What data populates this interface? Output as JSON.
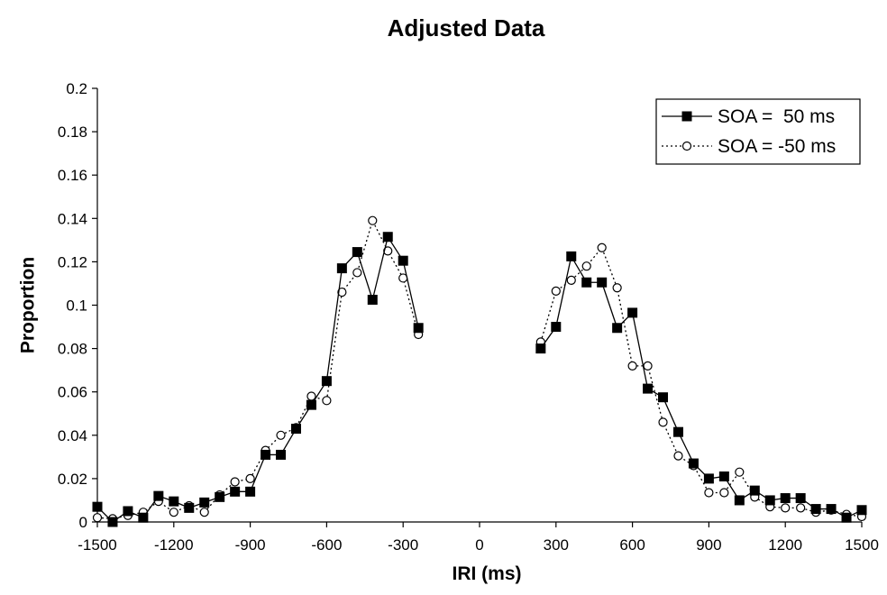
{
  "chart_data": {
    "type": "line",
    "title": "Adjusted Data",
    "xlabel": "IRI (ms)",
    "ylabel": "Proportion",
    "xlim": [
      -1500,
      1500
    ],
    "ylim": [
      0,
      0.2
    ],
    "x_ticks": [
      "-1500",
      "-1200",
      "-900",
      "-600",
      "-300",
      "0",
      "300",
      "600",
      "900",
      "1200",
      "1500"
    ],
    "y_ticks": [
      "0",
      "0.02",
      "0.04",
      "0.06",
      "0.08",
      "0.1",
      "0.12",
      "0.14",
      "0.16",
      "0.18",
      "0.2"
    ],
    "grid": false,
    "legend_position": "top-right",
    "series": [
      {
        "name": "SOA =  50 ms",
        "line_style": "solid",
        "marker": "filled-square",
        "color": "#000000",
        "segments": [
          {
            "x": [
              -1500,
              -1440,
              -1380,
              -1320,
              -1260,
              -1200,
              -1140,
              -1080,
              -1020,
              -960,
              -900,
              -840,
              -780,
              -720,
              -660,
              -600,
              -540,
              -480,
              -420,
              -360,
              -300,
              -240
            ],
            "y": [
              0.007,
              0.0,
              0.005,
              0.002,
              0.012,
              0.0095,
              0.0065,
              0.009,
              0.0115,
              0.014,
              0.014,
              0.031,
              0.031,
              0.043,
              0.054,
              0.065,
              0.117,
              0.1245,
              0.1025,
              0.1315,
              0.1205,
              0.0895
            ]
          },
          {
            "x": [
              240,
              300,
              360,
              420,
              480,
              540,
              600,
              660,
              720,
              780,
              840,
              900,
              960,
              1020,
              1080,
              1140,
              1200,
              1260,
              1320,
              1380,
              1440,
              1500
            ],
            "y": [
              0.08,
              0.09,
              0.1225,
              0.1105,
              0.1105,
              0.0895,
              0.0965,
              0.0615,
              0.0575,
              0.0415,
              0.027,
              0.02,
              0.021,
              0.01,
              0.0145,
              0.01,
              0.011,
              0.011,
              0.006,
              0.006,
              0.002,
              0.0055
            ]
          }
        ]
      },
      {
        "name": "SOA = -50 ms",
        "line_style": "dotted",
        "marker": "open-circle",
        "color": "#000000",
        "segments": [
          {
            "x": [
              -1500,
              -1440,
              -1380,
              -1320,
              -1260,
              -1200,
              -1140,
              -1080,
              -1020,
              -960,
              -900,
              -840,
              -780,
              -720,
              -660,
              -600,
              -540,
              -480,
              -420,
              -360,
              -300,
              -240
            ],
            "y": [
              0.002,
              0.0015,
              0.003,
              0.0045,
              0.0095,
              0.0045,
              0.0075,
              0.0045,
              0.0125,
              0.0185,
              0.02,
              0.033,
              0.04,
              0.0435,
              0.058,
              0.056,
              0.106,
              0.115,
              0.139,
              0.125,
              0.1125,
              0.0865
            ]
          },
          {
            "x": [
              240,
              300,
              360,
              420,
              480,
              540,
              600,
              660,
              720,
              780,
              840,
              900,
              960,
              1020,
              1080,
              1140,
              1200,
              1260,
              1320,
              1380,
              1440,
              1500
            ],
            "y": [
              0.083,
              0.1065,
              0.1115,
              0.118,
              0.1265,
              0.108,
              0.072,
              0.072,
              0.046,
              0.0305,
              0.026,
              0.0135,
              0.0135,
              0.023,
              0.0115,
              0.007,
              0.0065,
              0.0065,
              0.0045,
              0.0055,
              0.0035,
              0.0025
            ]
          }
        ]
      }
    ]
  }
}
